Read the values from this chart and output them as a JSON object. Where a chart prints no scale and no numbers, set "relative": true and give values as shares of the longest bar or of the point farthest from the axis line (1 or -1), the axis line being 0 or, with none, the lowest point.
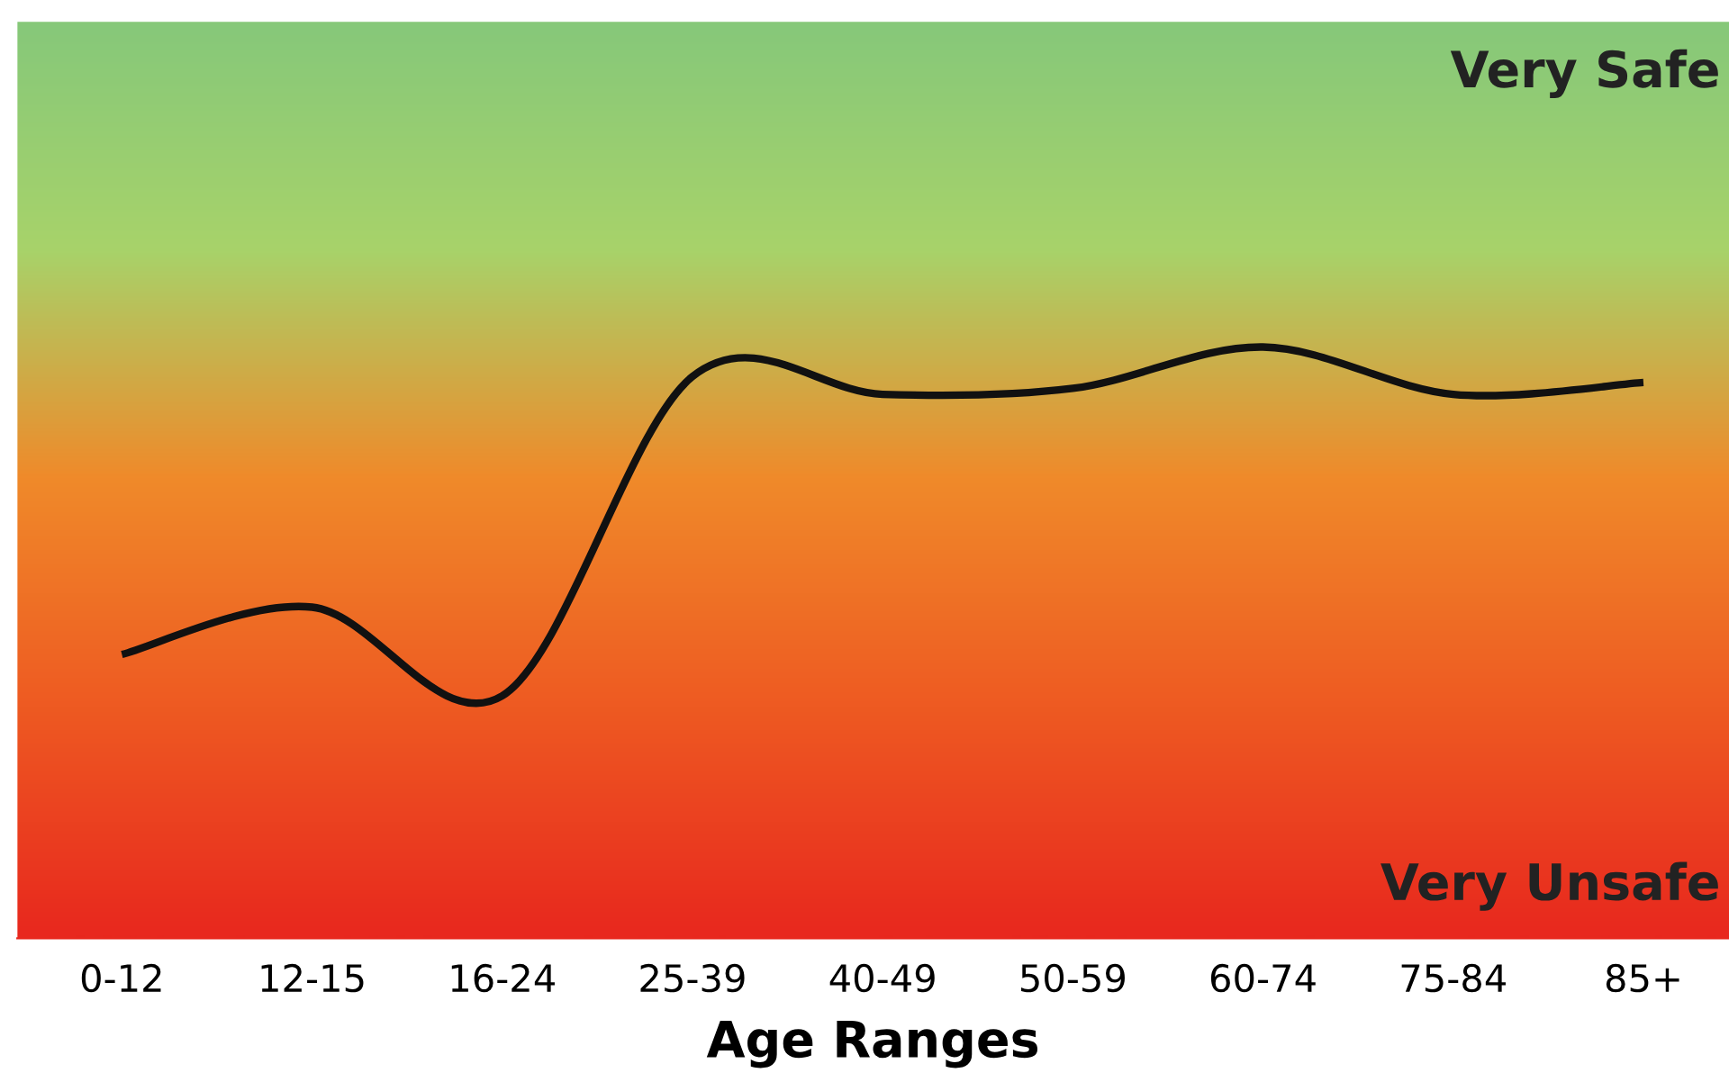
{
  "chart_data": {
    "type": "line",
    "relative": true,
    "xlabel": "Age Ranges",
    "categories": [
      "0-12",
      "12-15",
      "16-24",
      "25-39",
      "40-49",
      "50-59",
      "60-74",
      "75-84",
      "85+"
    ],
    "series": [
      {
        "color": "#111111",
        "values": [
          0.48,
          0.56,
          0.41,
          0.95,
          0.92,
          0.93,
          1.0,
          0.92,
          0.94
        ]
      }
    ],
    "annotations": [
      "Very Safe",
      "Very Unsafe"
    ],
    "grid": false,
    "legend": false,
    "marker": "none",
    "line_style": "solid"
  }
}
